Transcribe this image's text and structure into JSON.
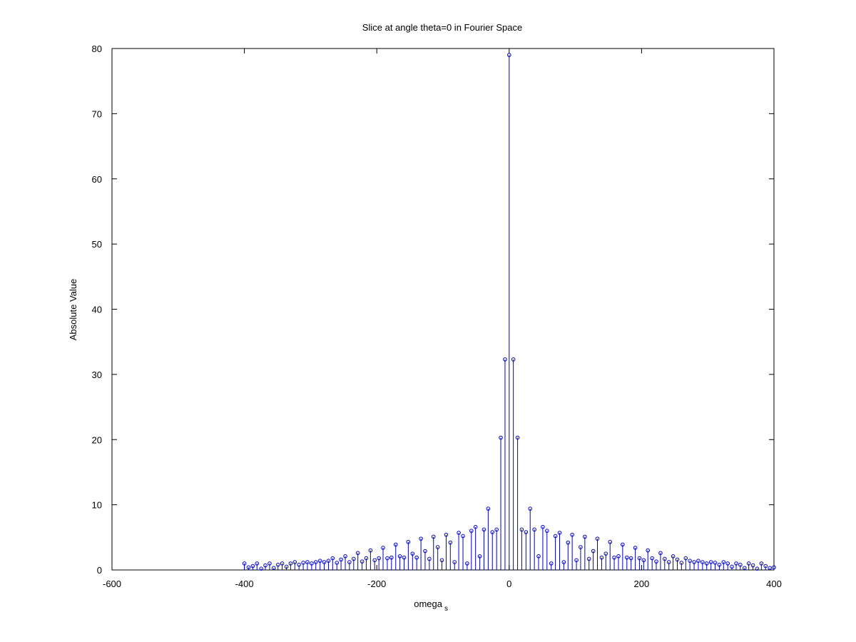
{
  "chart_data": {
    "type": "stem",
    "title": "Slice at angle theta=0 in Fourier Space",
    "xlabel": "omega",
    "xlabel_subscript": "s",
    "ylabel": "Absolute Value",
    "color": "#0000cc",
    "xlim": [
      -600,
      400
    ],
    "xticks": [
      -600,
      -400,
      -200,
      0,
      200,
      400
    ],
    "ylim": [
      0,
      80
    ],
    "yticks": [
      0,
      10,
      20,
      30,
      40,
      50,
      60,
      70,
      80
    ],
    "grid": false,
    "x": [
      -400.0,
      -393.7,
      -387.3,
      -381.0,
      -374.6,
      -368.3,
      -361.9,
      -355.6,
      -349.2,
      -342.9,
      -336.5,
      -330.2,
      -323.8,
      -317.5,
      -311.1,
      -304.8,
      -298.4,
      -292.1,
      -285.7,
      -279.4,
      -273.0,
      -266.7,
      -260.3,
      -254.0,
      -247.6,
      -241.3,
      -234.9,
      -228.6,
      -222.2,
      -215.9,
      -209.5,
      -203.2,
      -196.8,
      -190.5,
      -184.1,
      -177.8,
      -171.4,
      -165.1,
      -158.7,
      -152.4,
      -146.0,
      -139.7,
      -133.3,
      -127.0,
      -120.6,
      -114.3,
      -107.9,
      -101.6,
      -95.2,
      -88.9,
      -82.5,
      -76.2,
      -69.8,
      -63.5,
      -57.1,
      -50.8,
      -44.4,
      -38.1,
      -31.7,
      -25.4,
      -19.0,
      -12.7,
      -6.3,
      0,
      6.3,
      12.7,
      19.0,
      25.4,
      31.7,
      38.1,
      44.4,
      50.8,
      57.1,
      63.5,
      69.8,
      76.2,
      82.5,
      88.9,
      95.2,
      101.6,
      107.9,
      114.3,
      120.6,
      127.0,
      133.3,
      139.7,
      146.0,
      152.4,
      158.7,
      165.1,
      171.4,
      177.8,
      184.1,
      190.5,
      196.8,
      203.2,
      209.5,
      215.9,
      222.2,
      228.6,
      234.9,
      241.3,
      247.6,
      254.0,
      260.3,
      266.7,
      273.0,
      279.4,
      285.7,
      292.1,
      298.4,
      304.8,
      311.1,
      317.5,
      323.8,
      330.2,
      336.5,
      342.9,
      349.2,
      355.6,
      361.9,
      368.3,
      374.6,
      381.0,
      387.3,
      393.7,
      400.0
    ],
    "values": [
      1.0,
      0.4,
      0.6,
      1.0,
      0.2,
      0.7,
      1.0,
      0.3,
      0.8,
      1.0,
      0.5,
      1.0,
      1.2,
      0.8,
      1.1,
      1.2,
      1.0,
      1.2,
      1.4,
      1.2,
      1.4,
      1.8,
      1.1,
      1.6,
      2.1,
      1.2,
      1.7,
      2.6,
      1.3,
      1.8,
      3.0,
      1.5,
      1.8,
      3.4,
      1.8,
      1.9,
      3.9,
      2.1,
      1.9,
      4.3,
      2.5,
      1.9,
      4.8,
      2.9,
      1.7,
      5.1,
      3.5,
      1.5,
      5.4,
      4.2,
      1.2,
      5.7,
      5.2,
      1.0,
      6.0,
      6.6,
      2.1,
      6.2,
      9.4,
      5.8,
      6.2,
      20.3,
      32.3,
      79,
      32.3,
      20.3,
      6.2,
      5.8,
      9.4,
      6.2,
      2.1,
      6.6,
      6.0,
      1.0,
      5.2,
      5.7,
      1.2,
      4.2,
      5.4,
      1.5,
      3.5,
      5.1,
      1.7,
      2.9,
      4.8,
      1.9,
      2.5,
      4.3,
      1.9,
      2.1,
      3.9,
      1.9,
      1.8,
      3.4,
      1.8,
      1.5,
      3.0,
      1.8,
      1.3,
      2.6,
      1.7,
      1.2,
      2.1,
      1.6,
      1.1,
      1.8,
      1.4,
      1.2,
      1.4,
      1.2,
      1.0,
      1.2,
      1.1,
      0.8,
      1.2,
      1.0,
      0.5,
      1.0,
      0.8,
      0.3,
      1.0,
      0.7,
      0.2,
      1.0,
      0.6,
      0.3,
      0.4
    ]
  }
}
